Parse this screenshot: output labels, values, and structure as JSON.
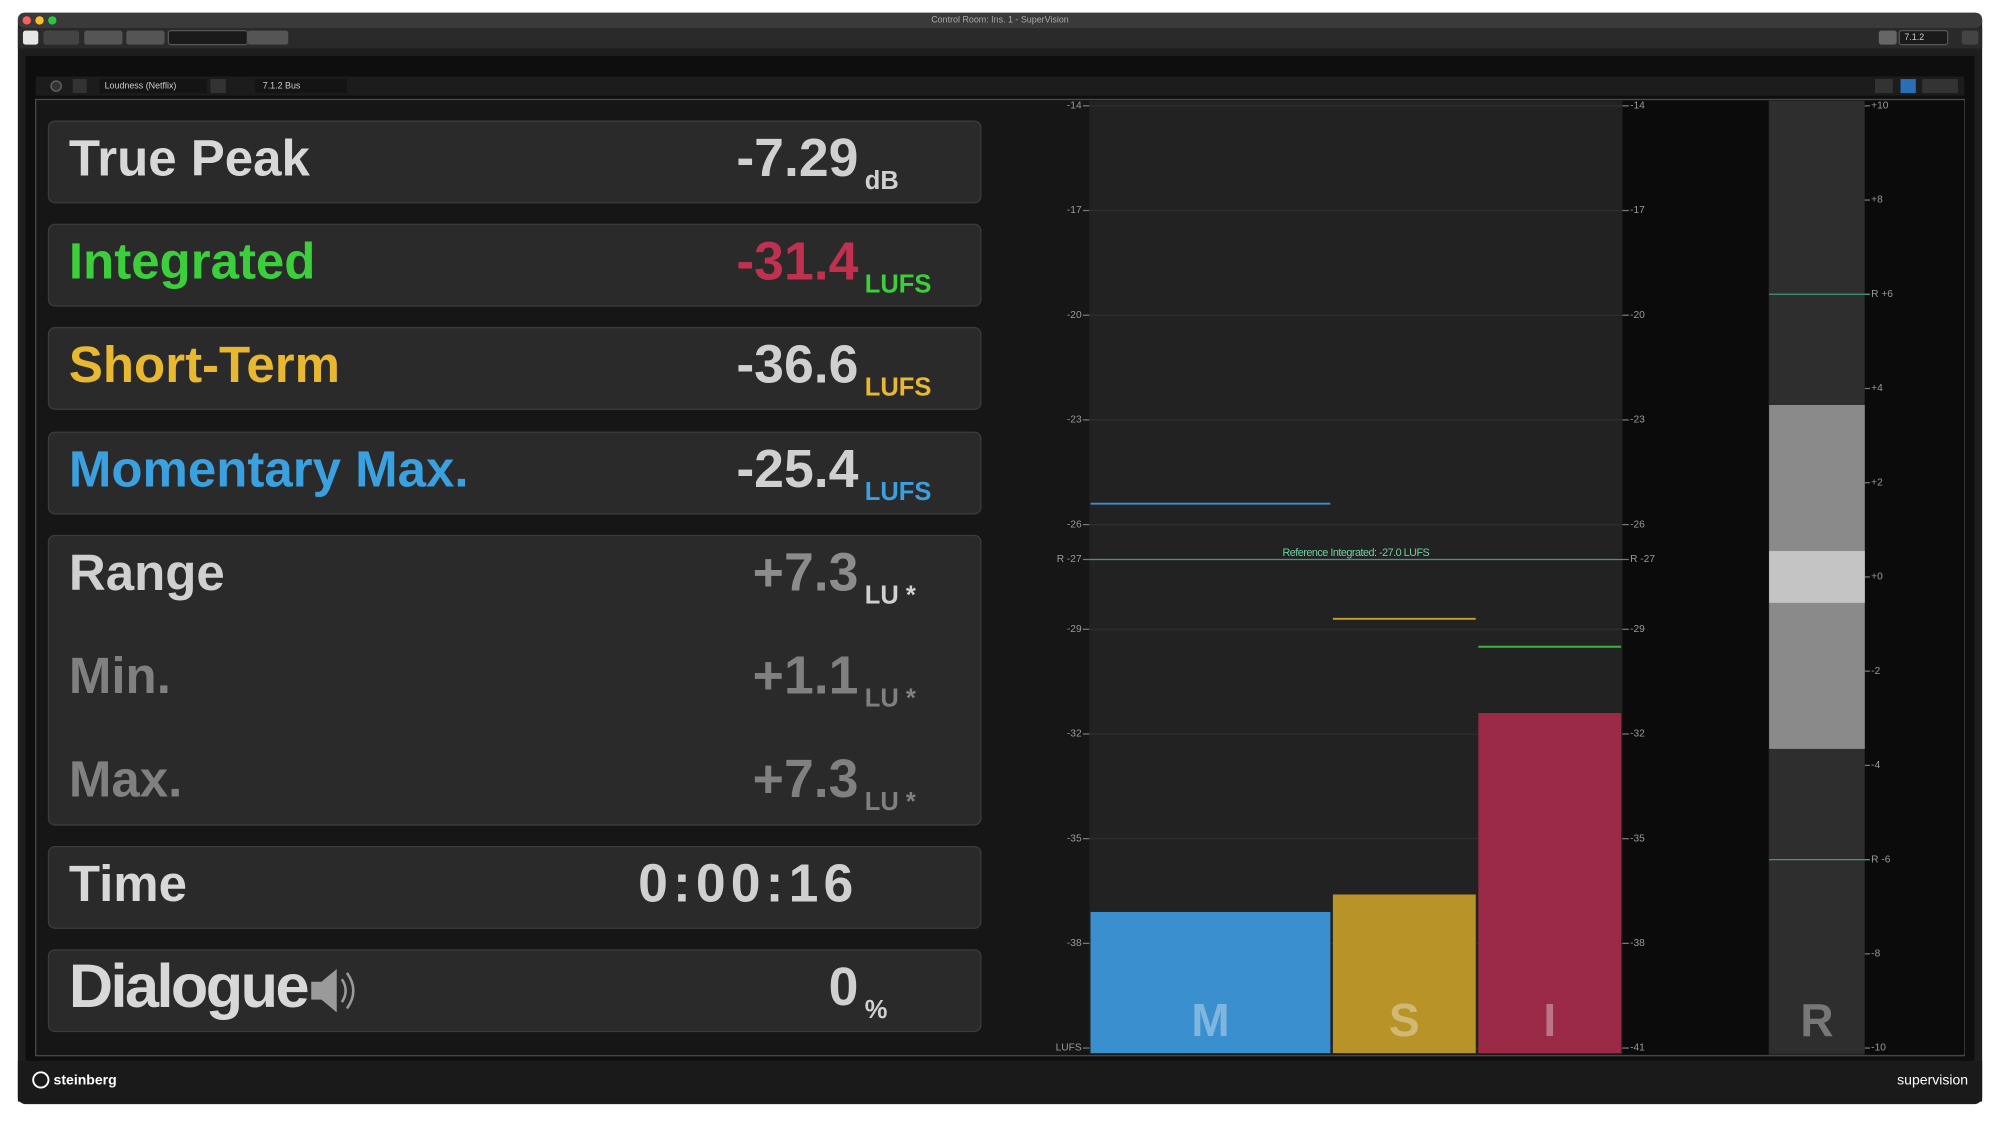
{
  "window": {
    "title": "Control Room: Ins. 1 - SuperVision",
    "channel_format": "7.1.2"
  },
  "header": {
    "preset": "Loudness (Netflix)",
    "bus": "7.1.2 Bus"
  },
  "readouts": [
    {
      "label": "True Peak",
      "value": "-7.29",
      "unit": "dB",
      "label_color": "#d8d8d8",
      "value_color": "#d0d0d0",
      "unit_color": "#d0d0d0"
    },
    {
      "label": "Integrated",
      "value": "-31.4",
      "unit": "LUFS",
      "label_color": "#3ccf3c",
      "value_color": "#c0304f",
      "unit_color": "#3ccf3c"
    },
    {
      "label": "Short-Term",
      "value": "-36.6",
      "unit": "LUFS",
      "label_color": "#e8b830",
      "value_color": "#d0d0d0",
      "unit_color": "#e8b830"
    },
    {
      "label": "Momentary Max.",
      "value": "-25.4",
      "unit": "LUFS",
      "label_color": "#3aa0e0",
      "value_color": "#d0d0d0",
      "unit_color": "#3aa0e0"
    },
    {
      "label": "Time",
      "value": "0:00:16",
      "label_color": "#d8d8d8",
      "value_color": "#d0d0d0"
    },
    {
      "label": "Dialogue",
      "value": "0",
      "unit": "%",
      "label_color": "#d8d8d8",
      "value_color": "#d0d0d0",
      "unit_color": "#d0d0d0"
    }
  ],
  "range_group": [
    {
      "label": "Range",
      "value": "+7.3",
      "unit": "LU *",
      "label_color": "#d0d0d0",
      "value_color": "#8c8c8c",
      "unit_color": "#d0d0d0"
    },
    {
      "label": "Min.",
      "value": "+1.1",
      "unit": "LU *",
      "label_color": "#808080",
      "value_color": "#808080",
      "unit_color": "#808080"
    },
    {
      "label": "Max.",
      "value": "+7.3",
      "unit": "LU *",
      "label_color": "#808080",
      "value_color": "#808080",
      "unit_color": "#808080"
    }
  ],
  "meter": {
    "ylim": [
      -14,
      -41
    ],
    "left_ticks": [
      -14,
      -17,
      -20,
      -23,
      -26,
      {
        "value": -27,
        "label": "R -27"
      },
      -29,
      -32,
      -35,
      -38,
      {
        "value": -41,
        "label": "LUFS"
      }
    ],
    "right_ticks": [
      -14,
      -17,
      -20,
      -23,
      -26,
      {
        "value": -27,
        "label": "R -27"
      },
      -29,
      -32,
      -35,
      -38,
      -41
    ],
    "reference": {
      "value": -27,
      "label": "Reference Integrated: -27.0 LUFS",
      "color": "#3a9a7a"
    },
    "bars": [
      {
        "name": "M",
        "value": -37.1,
        "color": "#3a8fcf",
        "max": -25.4,
        "max_color": "#3a8fcf"
      },
      {
        "name": "S",
        "value": -36.6,
        "color": "#b89428",
        "max": -28.7,
        "max_color": "#c9a030"
      },
      {
        "name": "I",
        "value": -31.4,
        "color": "#9a2a45",
        "max": -29.5,
        "max_color": "#3cb43c"
      }
    ]
  },
  "range_meter": {
    "name": "R",
    "ylim": [
      10,
      -10
    ],
    "ticks": [
      {
        "value": 10,
        "label": "+10"
      },
      {
        "value": 8,
        "label": "+8"
      },
      {
        "value": 6,
        "label": "R +6"
      },
      {
        "value": 4,
        "label": "+4"
      },
      {
        "value": 2,
        "label": "+2"
      },
      {
        "value": 0,
        "label": "+0"
      },
      -2,
      -4,
      {
        "value": -6,
        "label": "R -6"
      },
      -8,
      -10
    ],
    "low": -3.65,
    "high": 3.65,
    "inner_low": -0.55,
    "inner_high": 0.55,
    "target_lines": [
      6,
      -6
    ],
    "target_color": "#3a9a7a"
  },
  "footer": {
    "brand": "steinberg",
    "product": "supervision"
  }
}
